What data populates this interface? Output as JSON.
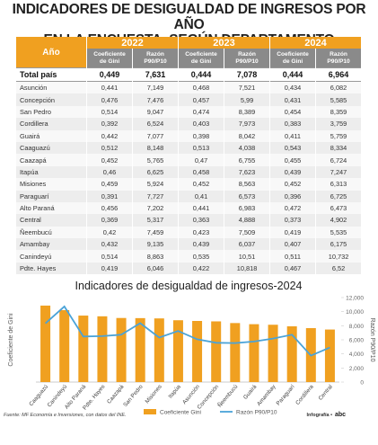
{
  "header": {
    "title_lines": [
      "INDICADORES DE DESIGUALDAD DE INGRESOS POR AÑO",
      "EN LA ENCUESTA, SEGÚN DEPARTAMENTO"
    ]
  },
  "table": {
    "corner": "Año",
    "years": [
      "2022",
      "2023",
      "2024"
    ],
    "subheaders": [
      "Coeficiente de Gini",
      "Razón P90/P10"
    ],
    "rows": [
      [
        "Total país",
        "0,449",
        "7,631",
        "0,444",
        "7,078",
        "0,444",
        "6,964"
      ],
      [
        "Asunción",
        "0,441",
        "7,149",
        "0,468",
        "7,521",
        "0,434",
        "6,082"
      ],
      [
        "Concepción",
        "0,476",
        "7,476",
        "0,457",
        "5,99",
        "0,431",
        "5,585"
      ],
      [
        "San Pedro",
        "0,514",
        "9,047",
        "0,474",
        "8,389",
        "0,454",
        "8,359"
      ],
      [
        "Cordillera",
        "0,392",
        "6,524",
        "0,403",
        "7,973",
        "0,383",
        "3,759"
      ],
      [
        "Guairá",
        "0,442",
        "7,077",
        "0,398",
        "8,042",
        "0,411",
        "5,759"
      ],
      [
        "Caaguazú",
        "0,512",
        "8,148",
        "0,513",
        "4,038",
        "0,543",
        "8,334"
      ],
      [
        "Caazapá",
        "0,452",
        "5,765",
        "0,47",
        "6,755",
        "0,455",
        "6,724"
      ],
      [
        "Itapúa",
        "0,46",
        "6,625",
        "0,458",
        "7,623",
        "0,439",
        "7,247"
      ],
      [
        "Misiones",
        "0,459",
        "5,924",
        "0,452",
        "8,563",
        "0,452",
        "6,313"
      ],
      [
        "Paraguarí",
        "0,391",
        "7,727",
        "0,41",
        "6,573",
        "0,396",
        "6,725"
      ],
      [
        "Alto Paraná",
        "0,456",
        "7,202",
        "0,441",
        "6,983",
        "0,472",
        "6,473"
      ],
      [
        "Central",
        "0,369",
        "5,317",
        "0,363",
        "4,888",
        "0,373",
        "4,902"
      ],
      [
        "Ñeembucú",
        "0,42",
        "7,459",
        "0,423",
        "7,509",
        "0,419",
        "5,535"
      ],
      [
        "Amambay",
        "0,432",
        "9,135",
        "0,439",
        "6,037",
        "0,407",
        "6,175"
      ],
      [
        "Canindeyú",
        "0,514",
        "8,863",
        "0,535",
        "10,51",
        "0,511",
        "10,732"
      ],
      [
        "Pdte. Hayes",
        "0,419",
        "6,046",
        "0,422",
        "10,818",
        "0,467",
        "6,52"
      ]
    ]
  },
  "chart_data": {
    "type": "bar",
    "title": "Indicadores de desigualdad de ingresos-2024",
    "categories": [
      "Caaguazú",
      "Canindeyú",
      "Alto Paraná",
      "Pdte. Hayes",
      "Caazapá",
      "San Pedro",
      "Misiones",
      "Itapúa",
      "Asunción",
      "Concepción",
      "Ñeembucú",
      "Guairá",
      "Amambay",
      "Paraguarí",
      "Cordillera",
      "Central"
    ],
    "series": [
      {
        "name": "Coeficiente Gini",
        "type": "bar",
        "color": "#f0a020",
        "values": [
          0.543,
          0.511,
          0.472,
          0.467,
          0.455,
          0.454,
          0.452,
          0.439,
          0.434,
          0.431,
          0.419,
          0.411,
          0.407,
          0.396,
          0.383,
          0.373
        ]
      },
      {
        "name": "Razón P90/P10",
        "type": "line",
        "axis": "y2",
        "color": "#4aa3d8",
        "values": [
          8.334,
          10.732,
          6.473,
          6.52,
          6.724,
          8.359,
          6.313,
          7.247,
          6.082,
          5.585,
          5.535,
          5.759,
          6.175,
          6.725,
          3.759,
          4.902
        ]
      }
    ],
    "ylabel": "Coeficiente de Gini",
    "ylim": [
      0,
      0.6
    ],
    "y2label": "Razón P90/P10",
    "y2lim": [
      0,
      12
    ],
    "y2ticks": [
      0,
      {
        "value": 2,
        "label": "2,000"
      },
      {
        "value": 4,
        "label": "4,000"
      },
      {
        "value": 6,
        "label": "6,000"
      },
      {
        "value": 8,
        "label": "8,000"
      },
      {
        "value": 10,
        "label": "10,000"
      },
      {
        "value": 12,
        "label": "12,000"
      }
    ],
    "grid": false
  },
  "footer": {
    "source": "Fuente: MF Economía e Inversiones, con datos del INE.",
    "credit": "Infografía •",
    "logo": "abc"
  }
}
